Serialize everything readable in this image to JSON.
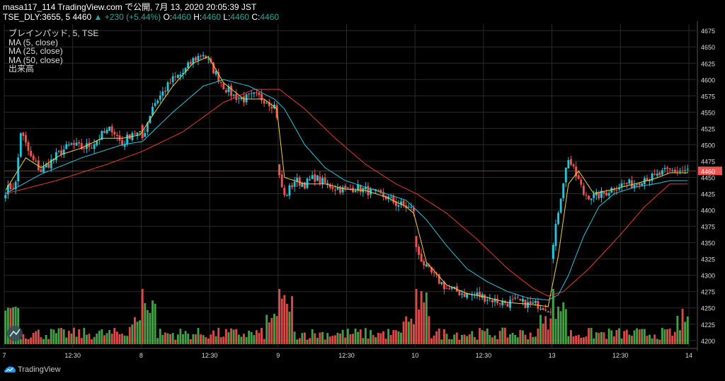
{
  "header": {
    "line1": "masa117_114 TradingView.com で公開, 7月 13, 2020 20:05:39 JST",
    "sym": "TSE_DLY:3655, 5 4460",
    "change": "▲ +230 (+5.44%)",
    "ohlc": [
      {
        "label": "O:",
        "value": "4460"
      },
      {
        "label": "H:",
        "value": "4460"
      },
      {
        "label": "L:",
        "value": "4460"
      },
      {
        "label": "C:",
        "value": "4460"
      }
    ]
  },
  "legend": [
    "ブレインパッド, 5, TSE",
    "MA (5, close)",
    "MA (25, close)",
    "MA (50, close)",
    "出来高"
  ],
  "footer": {
    "brand": "TradingView"
  },
  "colors": {
    "up": "#26c6da",
    "down": "#ef5350",
    "vol_up": "#4caf50",
    "vol_down": "#ef5350",
    "ma5": "#f0d040",
    "ma25": "#26c6da",
    "ma50": "#e53935",
    "grid": "#2a2a2a",
    "axis_text": "#dcdcdc"
  },
  "chart_data": {
    "type": "line",
    "y_axis_ticks": [
      4200,
      4225,
      4250,
      4275,
      4300,
      4325,
      4350,
      4375,
      4400,
      4425,
      4450,
      4475,
      4500,
      4525,
      4550,
      4575,
      4600,
      4625,
      4650,
      4675
    ],
    "ylim": [
      4190,
      4685
    ],
    "x_tick_labels": [
      "7",
      "12:30",
      "8",
      "12:30",
      "9",
      "12:30",
      "10",
      "12:30",
      "13",
      "12:30",
      "14"
    ],
    "last_price_label": "4460",
    "last_price": 4460,
    "bars_per_session": 54,
    "sessions": [
      "7",
      "8",
      "9",
      "10",
      "13"
    ],
    "close_anchors": [
      [
        0,
        4430
      ],
      [
        4,
        4440
      ],
      [
        6,
        4520
      ],
      [
        10,
        4480
      ],
      [
        14,
        4460
      ],
      [
        18,
        4475
      ],
      [
        22,
        4490
      ],
      [
        26,
        4500
      ],
      [
        30,
        4495
      ],
      [
        34,
        4500
      ],
      [
        38,
        4515
      ],
      [
        42,
        4525
      ],
      [
        46,
        4500
      ],
      [
        50,
        4520
      ],
      [
        53,
        4515
      ],
      [
        54,
        4510
      ],
      [
        58,
        4560
      ],
      [
        62,
        4580
      ],
      [
        66,
        4600
      ],
      [
        70,
        4610
      ],
      [
        74,
        4630
      ],
      [
        78,
        4640
      ],
      [
        82,
        4615
      ],
      [
        86,
        4590
      ],
      [
        90,
        4575
      ],
      [
        94,
        4570
      ],
      [
        98,
        4575
      ],
      [
        102,
        4570
      ],
      [
        106,
        4560
      ],
      [
        107,
        4545
      ],
      [
        108,
        4450
      ],
      [
        110,
        4420
      ],
      [
        114,
        4445
      ],
      [
        118,
        4440
      ],
      [
        122,
        4450
      ],
      [
        126,
        4440
      ],
      [
        130,
        4435
      ],
      [
        134,
        4430
      ],
      [
        138,
        4435
      ],
      [
        142,
        4430
      ],
      [
        146,
        4425
      ],
      [
        150,
        4420
      ],
      [
        154,
        4410
      ],
      [
        158,
        4405
      ],
      [
        161,
        4400
      ],
      [
        162,
        4340
      ],
      [
        166,
        4310
      ],
      [
        170,
        4295
      ],
      [
        174,
        4280
      ],
      [
        178,
        4275
      ],
      [
        182,
        4270
      ],
      [
        186,
        4270
      ],
      [
        190,
        4265
      ],
      [
        194,
        4260
      ],
      [
        198,
        4258
      ],
      [
        202,
        4260
      ],
      [
        206,
        4255
      ],
      [
        210,
        4255
      ],
      [
        214,
        4250
      ],
      [
        215,
        4250
      ],
      [
        216,
        4345
      ],
      [
        218,
        4400
      ],
      [
        220,
        4445
      ],
      [
        222,
        4480
      ],
      [
        224,
        4460
      ],
      [
        226,
        4445
      ],
      [
        228,
        4425
      ],
      [
        232,
        4420
      ],
      [
        236,
        4425
      ],
      [
        240,
        4435
      ],
      [
        244,
        4440
      ],
      [
        248,
        4440
      ],
      [
        252,
        4450
      ],
      [
        256,
        4450
      ],
      [
        260,
        4458
      ],
      [
        262,
        4460
      ]
    ],
    "ma5_anchors": [
      [
        0,
        4430
      ],
      [
        8,
        4480
      ],
      [
        14,
        4465
      ],
      [
        22,
        4485
      ],
      [
        30,
        4495
      ],
      [
        38,
        4510
      ],
      [
        46,
        4510
      ],
      [
        53,
        4515
      ],
      [
        58,
        4545
      ],
      [
        66,
        4590
      ],
      [
        74,
        4625
      ],
      [
        80,
        4635
      ],
      [
        86,
        4595
      ],
      [
        94,
        4570
      ],
      [
        102,
        4570
      ],
      [
        107,
        4555
      ],
      [
        110,
        4450
      ],
      [
        118,
        4440
      ],
      [
        126,
        4440
      ],
      [
        134,
        4432
      ],
      [
        142,
        4430
      ],
      [
        150,
        4420
      ],
      [
        158,
        4405
      ],
      [
        161,
        4395
      ],
      [
        166,
        4320
      ],
      [
        174,
        4285
      ],
      [
        182,
        4272
      ],
      [
        190,
        4266
      ],
      [
        198,
        4258
      ],
      [
        206,
        4256
      ],
      [
        214,
        4252
      ],
      [
        218,
        4330
      ],
      [
        222,
        4440
      ],
      [
        226,
        4460
      ],
      [
        232,
        4425
      ],
      [
        240,
        4432
      ],
      [
        248,
        4440
      ],
      [
        256,
        4448
      ],
      [
        262,
        4457
      ]
    ],
    "ma25_anchors": [
      [
        0,
        4425
      ],
      [
        14,
        4455
      ],
      [
        30,
        4480
      ],
      [
        46,
        4500
      ],
      [
        54,
        4505
      ],
      [
        66,
        4550
      ],
      [
        78,
        4590
      ],
      [
        86,
        4600
      ],
      [
        96,
        4590
      ],
      [
        106,
        4570
      ],
      [
        110,
        4555
      ],
      [
        118,
        4500
      ],
      [
        126,
        4465
      ],
      [
        134,
        4445
      ],
      [
        146,
        4430
      ],
      [
        158,
        4415
      ],
      [
        166,
        4385
      ],
      [
        174,
        4345
      ],
      [
        182,
        4310
      ],
      [
        190,
        4290
      ],
      [
        198,
        4275
      ],
      [
        206,
        4265
      ],
      [
        214,
        4262
      ],
      [
        218,
        4270
      ],
      [
        222,
        4300
      ],
      [
        228,
        4360
      ],
      [
        234,
        4405
      ],
      [
        240,
        4425
      ],
      [
        248,
        4435
      ],
      [
        256,
        4440
      ],
      [
        262,
        4445
      ]
    ],
    "ma50_anchors": [
      [
        0,
        4425
      ],
      [
        20,
        4445
      ],
      [
        40,
        4470
      ],
      [
        54,
        4490
      ],
      [
        70,
        4520
      ],
      [
        86,
        4565
      ],
      [
        98,
        4585
      ],
      [
        108,
        4585
      ],
      [
        118,
        4555
      ],
      [
        130,
        4510
      ],
      [
        142,
        4470
      ],
      [
        154,
        4440
      ],
      [
        162,
        4425
      ],
      [
        174,
        4395
      ],
      [
        186,
        4355
      ],
      [
        198,
        4310
      ],
      [
        208,
        4280
      ],
      [
        214,
        4268
      ],
      [
        220,
        4275
      ],
      [
        230,
        4310
      ],
      [
        242,
        4360
      ],
      [
        252,
        4405
      ],
      [
        262,
        4440
      ]
    ],
    "volume_scale_max": 100
  }
}
